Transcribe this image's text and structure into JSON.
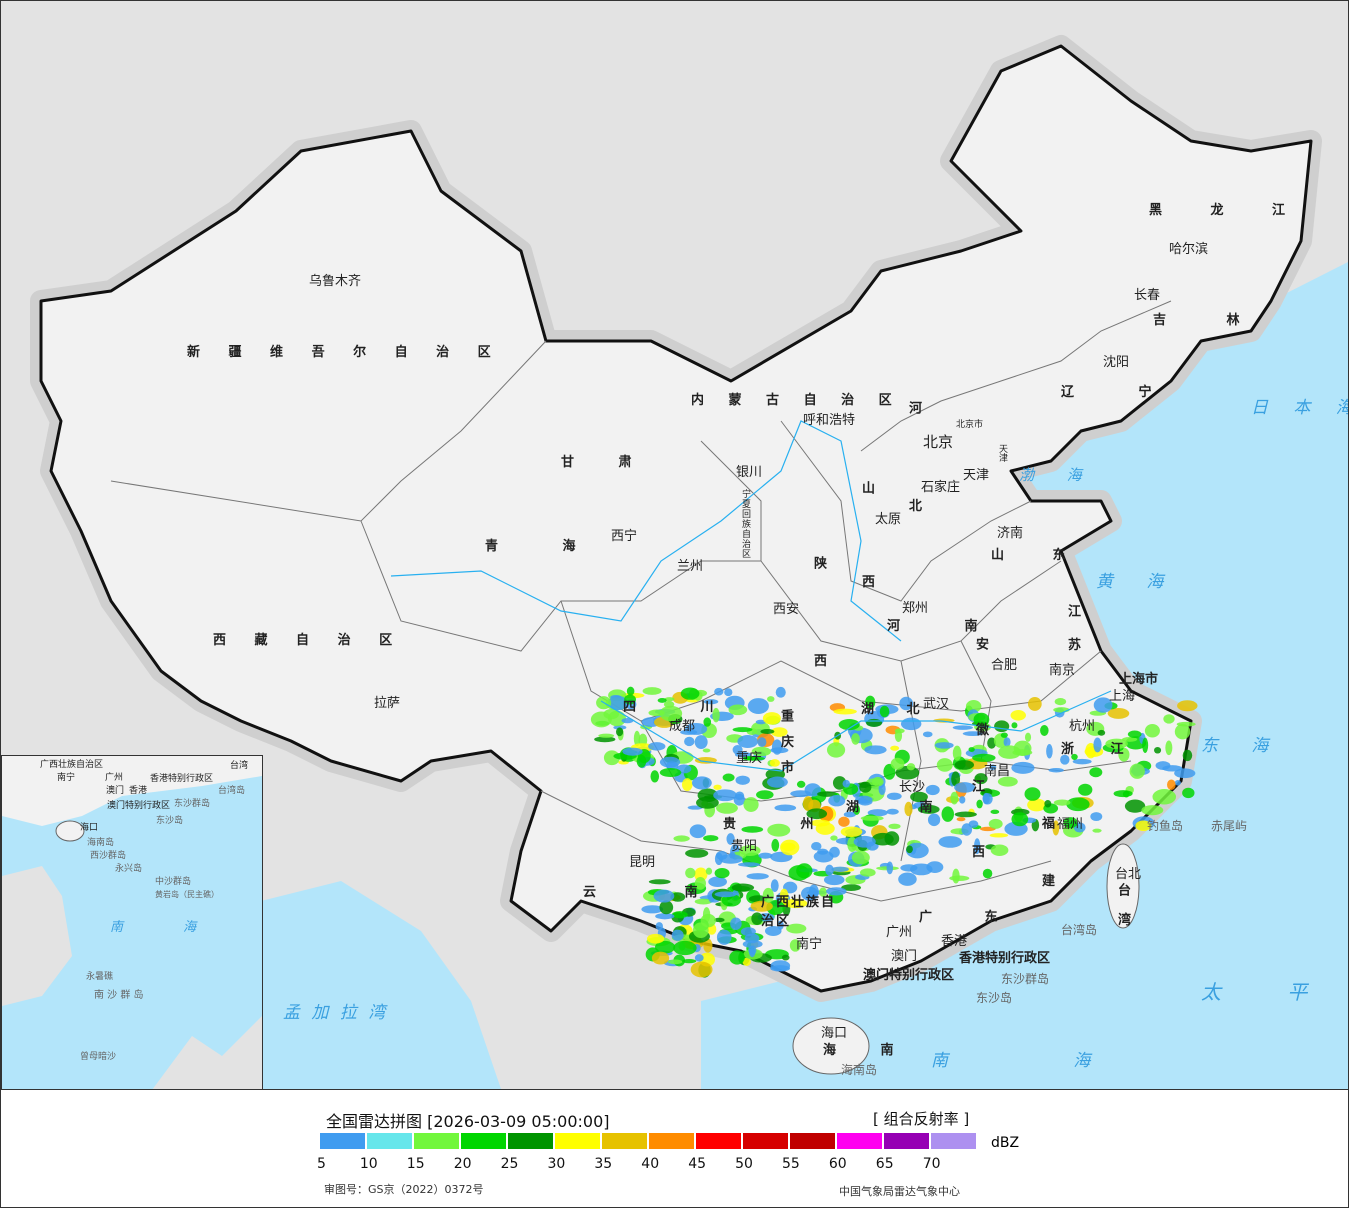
{
  "legend": {
    "title": "全国雷达拼图 [2026-03-09 05:00:00]",
    "product": "[ 组合反射率 ]",
    "unit": "dBZ",
    "ticks": [
      "5",
      "10",
      "15",
      "20",
      "25",
      "30",
      "35",
      "40",
      "45",
      "50",
      "55",
      "60",
      "65",
      "70"
    ],
    "colors": [
      "#409cf0",
      "#66e6eb",
      "#72f73c",
      "#00d600",
      "#009400",
      "#ffff00",
      "#e6c200",
      "#ff8c00",
      "#ff0000",
      "#d60000",
      "#c00000",
      "#ff00f0",
      "#9600b4",
      "#ad90f0"
    ],
    "approval_number": "审图号：GS京（2022）0372号",
    "issuer": "中国气象局雷达气象中心"
  },
  "map": {
    "colors": {
      "sea": "#b3e5fa",
      "land": "#f2f2f2",
      "foreign_land": "#e3e3e3",
      "border": "#111111"
    },
    "provinces": [
      "新 疆 维 吾 尔 自 治 区",
      "西 藏 自 治 区",
      "青 海",
      "甘 肃",
      "内 蒙 古 自 治 区",
      "黑 龙 江",
      "吉 林",
      "辽 宁",
      "河 北",
      "山 西",
      "陕 西",
      "宁夏回族自治区",
      "河 南",
      "山 东",
      "江 苏",
      "安 徽",
      "湖 北",
      "四 川",
      "重 庆 市",
      "贵 州",
      "云 南",
      "广西壮族自治区",
      "湖 南",
      "江 西",
      "浙 江",
      "福 建",
      "广 东",
      "海 南",
      "台 湾",
      "香港特别行政区",
      "澳门特别行政区",
      "上海市",
      "天津",
      "北京市"
    ],
    "cities": [
      "乌鲁木齐",
      "拉萨",
      "西宁",
      "兰州",
      "银川",
      "呼和浩特",
      "北京",
      "石家庄",
      "太原",
      "济南",
      "郑州",
      "西安",
      "合肥",
      "南京",
      "上海",
      "杭州",
      "武汉",
      "成都",
      "重庆",
      "贵阳",
      "昆明",
      "南宁",
      "广州",
      "香港",
      "澳门",
      "海口",
      "南昌",
      "长沙",
      "福州",
      "台北",
      "哈尔滨",
      "长春",
      "沈阳",
      "天津"
    ],
    "seas": [
      "渤 海",
      "黄 海",
      "东 海",
      "南 海",
      "日 本 海",
      "太 平 洋",
      "孟 加 拉 湾"
    ],
    "islands": [
      "钓鱼岛",
      "赤尾屿",
      "东沙群岛",
      "东沙岛",
      "海南岛",
      "台湾岛"
    ],
    "inset_labels": [
      "广西壮族自治区",
      "南宁",
      "广州",
      "澳门",
      "香港",
      "香港特别行政区",
      "澳门特别行政区",
      "台湾",
      "台湾岛",
      "东沙群岛",
      "东沙岛",
      "海口",
      "海南岛",
      "西沙群岛",
      "永兴岛",
      "中沙群岛",
      "黄岩岛（民主礁）",
      "南 海",
      "永暑礁",
      "南 沙 群 岛",
      "曾母暗沙"
    ]
  }
}
